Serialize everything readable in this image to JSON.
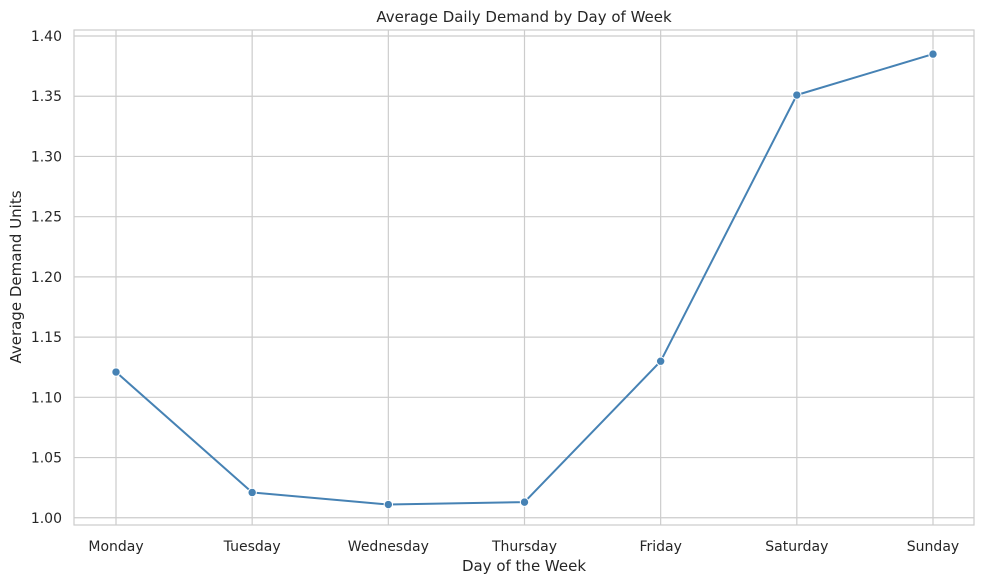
{
  "chart_data": {
    "type": "line",
    "title": "Average Daily Demand by Day of Week",
    "xlabel": "Day of the Week",
    "ylabel": "Average Demand Units",
    "categories": [
      "Monday",
      "Tuesday",
      "Wednesday",
      "Thursday",
      "Friday",
      "Saturday",
      "Sunday"
    ],
    "series": [
      {
        "values": [
          1.121,
          1.021,
          1.011,
          1.013,
          1.13,
          1.351,
          1.385
        ]
      }
    ],
    "ylim": [
      0.994,
      1.405
    ],
    "yticks": [
      "1.00",
      "1.05",
      "1.10",
      "1.15",
      "1.20",
      "1.25",
      "1.30",
      "1.35",
      "1.40"
    ],
    "grid": true,
    "legend": "none",
    "colors": {
      "line": "#4682b4",
      "grid": "#cccccc",
      "frame": "#cccccc"
    }
  }
}
